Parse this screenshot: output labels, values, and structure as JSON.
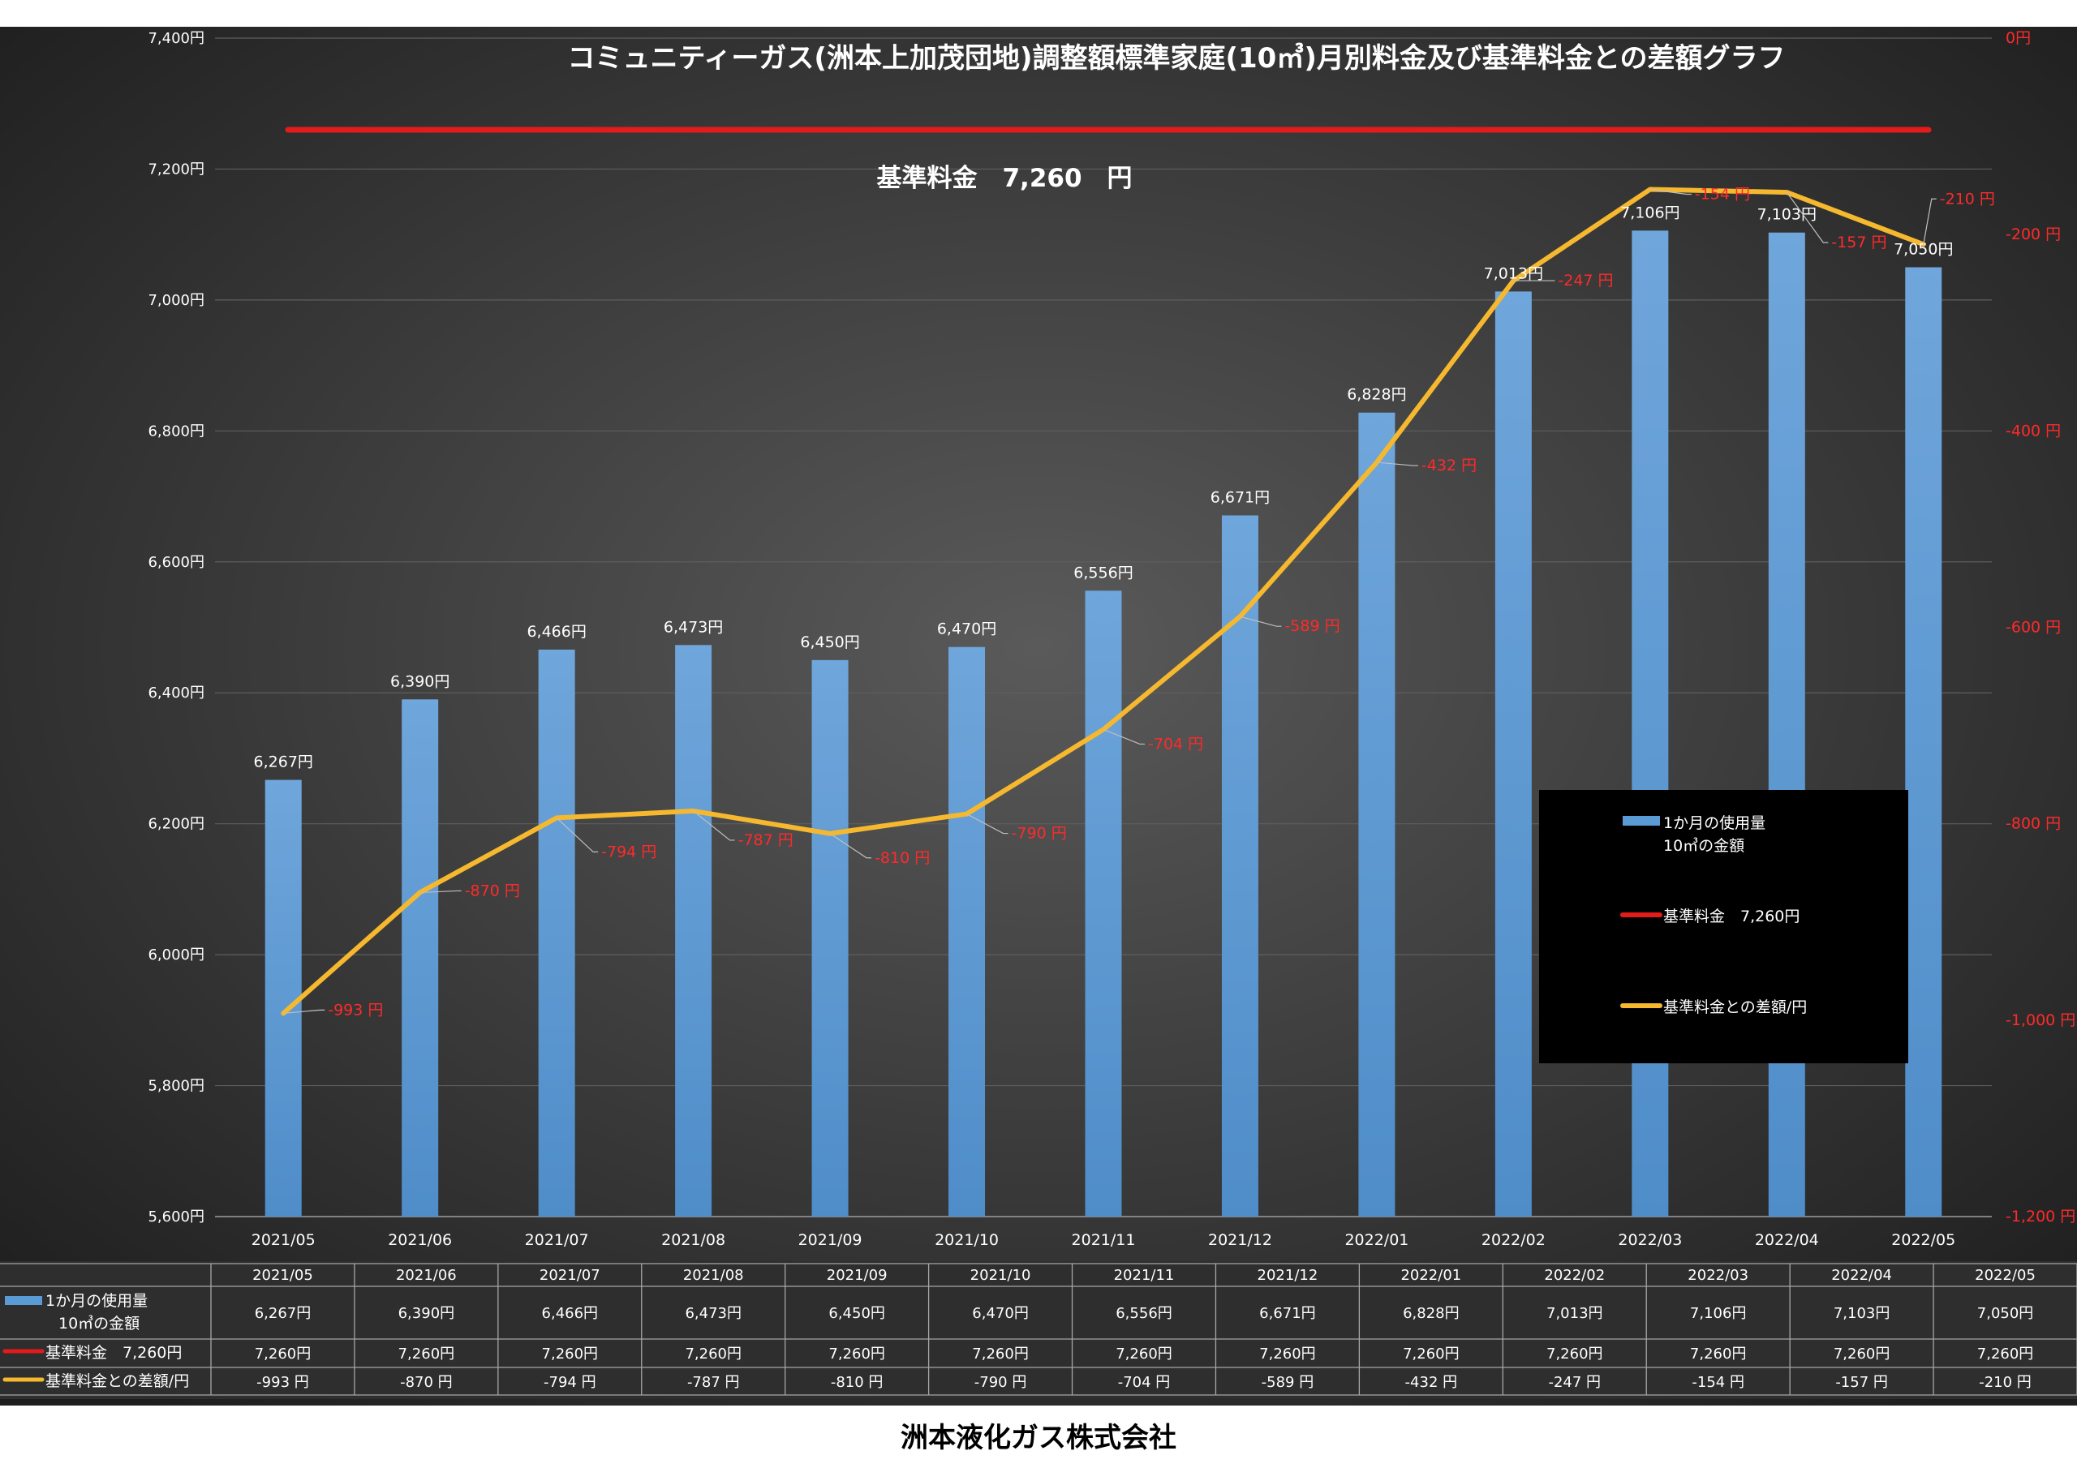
{
  "chart_data": {
    "type": "bar",
    "title": "コミュニティーガス(洲本上加茂団地)調整額標準家庭(10㎥)月別料金及び基準料金との差額グラフ",
    "baseline_label": "基準料金　7,260　円",
    "categories": [
      "2021/05",
      "2021/06",
      "2021/07",
      "2021/08",
      "2021/09",
      "2021/10",
      "2021/11",
      "2021/12",
      "2022/01",
      "2022/02",
      "2022/03",
      "2022/04",
      "2022/05"
    ],
    "series": [
      {
        "name": "1か月の使用量\n10㎥の金額",
        "type": "bar",
        "axis": "left",
        "color": "#5b9bd5",
        "values": [
          6267,
          6390,
          6466,
          6473,
          6450,
          6470,
          6556,
          6671,
          6828,
          7013,
          7106,
          7103,
          7050
        ],
        "labels": [
          "6,267円",
          "6,390円",
          "6,466円",
          "6,473円",
          "6,450円",
          "6,470円",
          "6,556円",
          "6,671円",
          "6,828円",
          "7,013円",
          "7,106円",
          "7,103円",
          "7,050円"
        ]
      },
      {
        "name": "基準料金　7,260円",
        "type": "line",
        "axis": "left",
        "color": "#e31b1b",
        "values": [
          7260,
          7260,
          7260,
          7260,
          7260,
          7260,
          7260,
          7260,
          7260,
          7260,
          7260,
          7260,
          7260
        ],
        "labels": [
          "7,260円",
          "7,260円",
          "7,260円",
          "7,260円",
          "7,260円",
          "7,260円",
          "7,260円",
          "7,260円",
          "7,260円",
          "7,260円",
          "7,260円",
          "7,260円",
          "7,260円"
        ]
      },
      {
        "name": "基準料金との差額/円",
        "type": "line",
        "axis": "right",
        "color": "#f5b82e",
        "values": [
          -993,
          -870,
          -794,
          -787,
          -810,
          -790,
          -704,
          -589,
          -432,
          -247,
          -154,
          -157,
          -210
        ],
        "labels": [
          "-993 円",
          "-870 円",
          "-794 円",
          "-787 円",
          "-810 円",
          "-790 円",
          "-704 円",
          "-589 円",
          "-432 円",
          "-247 円",
          "-154 円",
          "-157 円",
          "-210 円"
        ]
      }
    ],
    "y_left": {
      "range": [
        5600,
        7400
      ],
      "ticks": [
        "5,600円",
        "5,800円",
        "6,000円",
        "6,200円",
        "6,400円",
        "6,600円",
        "6,800円",
        "7,000円",
        "7,200円",
        "7,400円"
      ],
      "tick_values": [
        5600,
        5800,
        6000,
        6200,
        6400,
        6600,
        6800,
        7000,
        7200,
        7400
      ]
    },
    "y_right": {
      "range": [
        -1200,
        0
      ],
      "ticks": [
        "-1,200 円",
        "-1,000 円",
        "-800 円",
        "-600 円",
        "-400 円",
        "-200 円",
        "0円"
      ],
      "tick_values": [
        -1200,
        -1000,
        -800,
        -600,
        -400,
        -200,
        0
      ]
    },
    "grid": true,
    "legend": "right",
    "data_table": true,
    "colors": {
      "background_center": "#5a5a5a",
      "background_edge": "#1e1e1e",
      "diff_label": "#ff2a2a",
      "text": "#ffffff"
    }
  },
  "footer": "洲本液化ガス株式会社"
}
